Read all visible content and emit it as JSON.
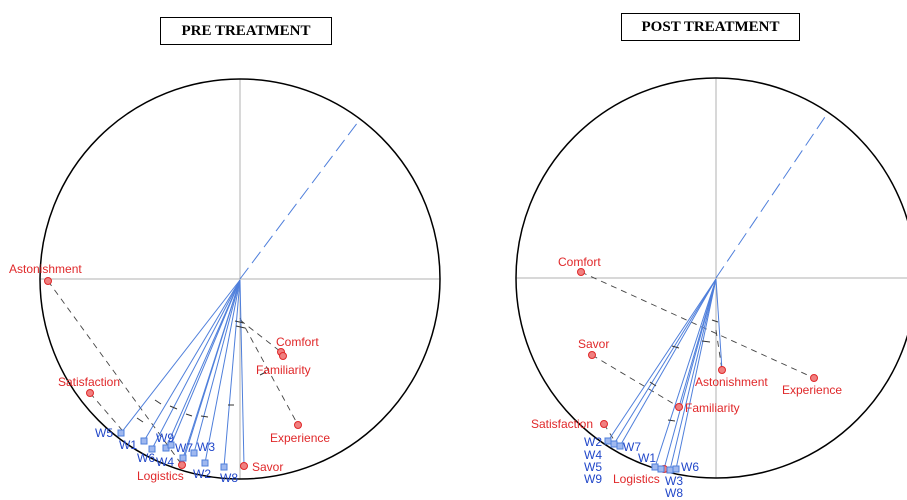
{
  "titles": {
    "pre": "PRE TREATMENT",
    "post": "POST TREATMENT"
  },
  "colors": {
    "variable": "#e0282a",
    "individual": "#4f7fdb",
    "individual_label": "#2147c9",
    "projection_line": "#4f7fdb",
    "axis": "#b0b0b0",
    "circle": "#000000"
  },
  "pre": {
    "variables": [
      {
        "label": "Astonishment"
      },
      {
        "label": "Comfort"
      },
      {
        "label": "Familiarity"
      },
      {
        "label": "Satisfaction"
      },
      {
        "label": "Experience"
      },
      {
        "label": "Logistics"
      },
      {
        "label": "Savor"
      }
    ],
    "individuals": [
      {
        "label": "W5"
      },
      {
        "label": "W1"
      },
      {
        "label": "W9"
      },
      {
        "label": "W6"
      },
      {
        "label": "W7"
      },
      {
        "label": "W3"
      },
      {
        "label": "W4"
      },
      {
        "label": "W2"
      },
      {
        "label": "W8"
      }
    ]
  },
  "post": {
    "variables": [
      {
        "label": "Comfort"
      },
      {
        "label": "Savor"
      },
      {
        "label": "Astonishment"
      },
      {
        "label": "Experience"
      },
      {
        "label": "Familiarity"
      },
      {
        "label": "Satisfaction"
      },
      {
        "label": "Logistics"
      }
    ],
    "individuals": [
      {
        "label": "W2"
      },
      {
        "label": "W7"
      },
      {
        "label": "W4"
      },
      {
        "label": "W1"
      },
      {
        "label": "W5"
      },
      {
        "label": "W9"
      },
      {
        "label": "W6"
      },
      {
        "label": "W3"
      },
      {
        "label": "W8"
      }
    ]
  }
}
